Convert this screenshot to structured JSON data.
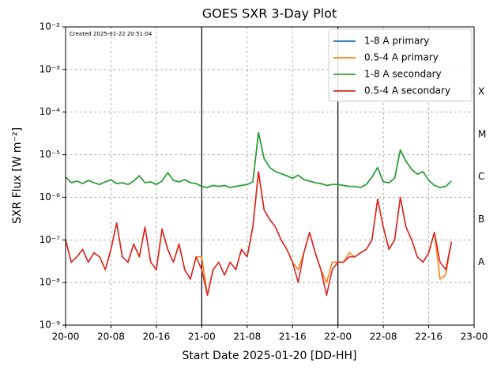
{
  "chart_data": {
    "type": "line",
    "title": "GOES SXR 3-Day Plot",
    "x_label": "Start Date 2025-01-20 [DD-HH]",
    "y_label": "SXR Flux [W m⁻²]",
    "annotation": "Created 2025-01-22 20:51:04",
    "log_y": true,
    "grid": true,
    "legend": "upper right",
    "vlines": [
      24,
      48
    ],
    "class_labels": [
      {
        "value": 0.0003,
        "label": "X"
      },
      {
        "value": 3e-05,
        "label": "M"
      },
      {
        "value": 3e-06,
        "label": "C"
      },
      {
        "value": 3e-07,
        "label": "B"
      },
      {
        "value": 3e-08,
        "label": "A"
      }
    ],
    "xlim": [
      0,
      72
    ],
    "xticks": [
      {
        "value": 0,
        "label": "20-00"
      },
      {
        "value": 8,
        "label": "20-08"
      },
      {
        "value": 16,
        "label": "20-16"
      },
      {
        "value": 24,
        "label": "21-00"
      },
      {
        "value": 32,
        "label": "21-08"
      },
      {
        "value": 40,
        "label": "21-16"
      },
      {
        "value": 48,
        "label": "22-00"
      },
      {
        "value": 56,
        "label": "22-08"
      },
      {
        "value": 64,
        "label": "22-16"
      },
      {
        "value": 72,
        "label": "23-00"
      }
    ],
    "ylim": [
      1e-09,
      0.01
    ],
    "yticks": [
      {
        "value": 1e-09,
        "label": "10⁻⁹"
      },
      {
        "value": 1e-08,
        "label": "10⁻⁸"
      },
      {
        "value": 1e-07,
        "label": "10⁻⁷"
      },
      {
        "value": 1e-06,
        "label": "10⁻⁶"
      },
      {
        "value": 1e-05,
        "label": "10⁻⁵"
      },
      {
        "value": 0.0001,
        "label": "10⁻⁴"
      },
      {
        "value": 0.001,
        "label": "10⁻³"
      },
      {
        "value": 0.01,
        "label": "10⁻²"
      }
    ],
    "x": [
      0,
      1,
      2,
      3,
      4,
      5,
      6,
      7,
      8,
      9,
      10,
      11,
      12,
      13,
      14,
      15,
      16,
      17,
      18,
      19,
      20,
      21,
      22,
      23,
      24,
      25,
      26,
      27,
      28,
      29,
      30,
      31,
      32,
      33,
      34,
      35,
      36,
      37,
      38,
      39,
      40,
      41,
      42,
      43,
      44,
      45,
      46,
      47,
      48,
      49,
      50,
      51,
      52,
      53,
      54,
      55,
      56,
      57,
      58,
      59,
      60,
      61,
      62,
      63,
      64,
      65,
      66,
      67,
      68
    ],
    "series": [
      {
        "name": "1-8 A primary",
        "color": "#1f77b4",
        "values": [
          3e-06,
          2.2e-06,
          2.4e-06,
          2.1e-06,
          2.5e-06,
          2.2e-06,
          2e-06,
          2.3e-06,
          2.6e-06,
          2.1e-06,
          2.2e-06,
          2e-06,
          2.4e-06,
          3.2e-06,
          2.2e-06,
          2.3e-06,
          2e-06,
          2.4e-06,
          3.8e-06,
          2.5e-06,
          2.3e-06,
          2.6e-06,
          2.2e-06,
          2.1e-06,
          1.8e-06,
          1.7e-06,
          1.9e-06,
          1.8e-06,
          1.9e-06,
          1.7e-06,
          1.8e-06,
          1.9e-06,
          2e-06,
          2.3e-06,
          3.3e-05,
          8e-06,
          5e-06,
          4e-06,
          3.6e-06,
          3.2e-06,
          2.8e-06,
          3.3e-06,
          2.6e-06,
          2.4e-06,
          2.2e-06,
          2.1e-06,
          1.9e-06,
          2e-06,
          2e-06,
          1.9e-06,
          1.8e-06,
          1.8e-06,
          1.7e-06,
          2e-06,
          3e-06,
          5e-06,
          2.3e-06,
          2.2e-06,
          2.8e-06,
          1.3e-05,
          7e-06,
          4.5e-06,
          3.5e-06,
          4e-06,
          2.5e-06,
          1.9e-06,
          1.7e-06,
          1.8e-06,
          2.4e-06
        ]
      },
      {
        "name": "0.5-4 A primary",
        "color": "#ff7f0e",
        "values": [
          1e-07,
          3e-08,
          4e-08,
          6e-08,
          3e-08,
          5e-08,
          4e-08,
          2e-08,
          6e-08,
          2.5e-07,
          4e-08,
          3e-08,
          8e-08,
          4e-08,
          2e-07,
          3e-08,
          2e-08,
          1.8e-07,
          6e-08,
          3e-08,
          8e-08,
          2e-08,
          1.2e-08,
          4e-08,
          4e-08,
          5e-09,
          2e-08,
          3e-08,
          1.5e-08,
          3e-08,
          2e-08,
          6e-08,
          4e-08,
          2e-07,
          4e-06,
          5e-07,
          3e-07,
          2e-07,
          1e-07,
          6e-08,
          3e-08,
          2e-08,
          5e-08,
          1.5e-07,
          5e-08,
          2e-08,
          1e-08,
          3e-08,
          3e-08,
          3e-08,
          5e-08,
          4e-08,
          5e-08,
          6e-08,
          1e-07,
          9e-07,
          2e-07,
          6e-08,
          1e-07,
          1e-06,
          2e-07,
          1e-07,
          4e-08,
          3e-08,
          5e-08,
          1.5e-07,
          1.2e-08,
          1.5e-08,
          9e-08
        ]
      },
      {
        "name": "1-8 A secondary",
        "color": "#2ca02c",
        "values": [
          3e-06,
          2.2e-06,
          2.4e-06,
          2.1e-06,
          2.5e-06,
          2.2e-06,
          2e-06,
          2.3e-06,
          2.6e-06,
          2.1e-06,
          2.2e-06,
          2e-06,
          2.4e-06,
          3.2e-06,
          2.2e-06,
          2.3e-06,
          2e-06,
          2.4e-06,
          3.8e-06,
          2.5e-06,
          2.3e-06,
          2.6e-06,
          2.2e-06,
          2.1e-06,
          1.8e-06,
          1.7e-06,
          1.9e-06,
          1.8e-06,
          1.9e-06,
          1.7e-06,
          1.8e-06,
          1.9e-06,
          2e-06,
          2.3e-06,
          3.3e-05,
          8e-06,
          5e-06,
          4e-06,
          3.6e-06,
          3.2e-06,
          2.8e-06,
          3.3e-06,
          2.6e-06,
          2.4e-06,
          2.2e-06,
          2.1e-06,
          1.9e-06,
          2e-06,
          2e-06,
          1.9e-06,
          1.8e-06,
          1.8e-06,
          1.7e-06,
          2e-06,
          3e-06,
          5e-06,
          2.3e-06,
          2.2e-06,
          2.8e-06,
          1.3e-05,
          7e-06,
          4.5e-06,
          3.5e-06,
          4e-06,
          2.5e-06,
          1.9e-06,
          1.7e-06,
          1.8e-06,
          2.4e-06
        ]
      },
      {
        "name": "0.5-4 A secondary",
        "color": "#d62728",
        "values": [
          1e-07,
          3e-08,
          4e-08,
          6e-08,
          3e-08,
          5e-08,
          4e-08,
          2e-08,
          6e-08,
          2.5e-07,
          4e-08,
          3e-08,
          8e-08,
          4e-08,
          2e-07,
          3e-08,
          2e-08,
          1.8e-07,
          6e-08,
          3e-08,
          8e-08,
          2e-08,
          1.2e-08,
          4e-08,
          2e-08,
          5e-09,
          2e-08,
          3e-08,
          1.5e-08,
          3e-08,
          2e-08,
          6e-08,
          4e-08,
          2e-07,
          4e-06,
          5e-07,
          3e-07,
          2e-07,
          1e-07,
          6e-08,
          3e-08,
          1e-08,
          5e-08,
          1.5e-07,
          5e-08,
          2e-08,
          5e-09,
          2e-08,
          3e-08,
          3e-08,
          4e-08,
          4e-08,
          5e-08,
          6e-08,
          1e-07,
          9e-07,
          2e-07,
          6e-08,
          1e-07,
          1e-06,
          2e-07,
          1e-07,
          4e-08,
          3e-08,
          5e-08,
          1.5e-07,
          3e-08,
          2e-08,
          9e-08
        ]
      }
    ]
  }
}
